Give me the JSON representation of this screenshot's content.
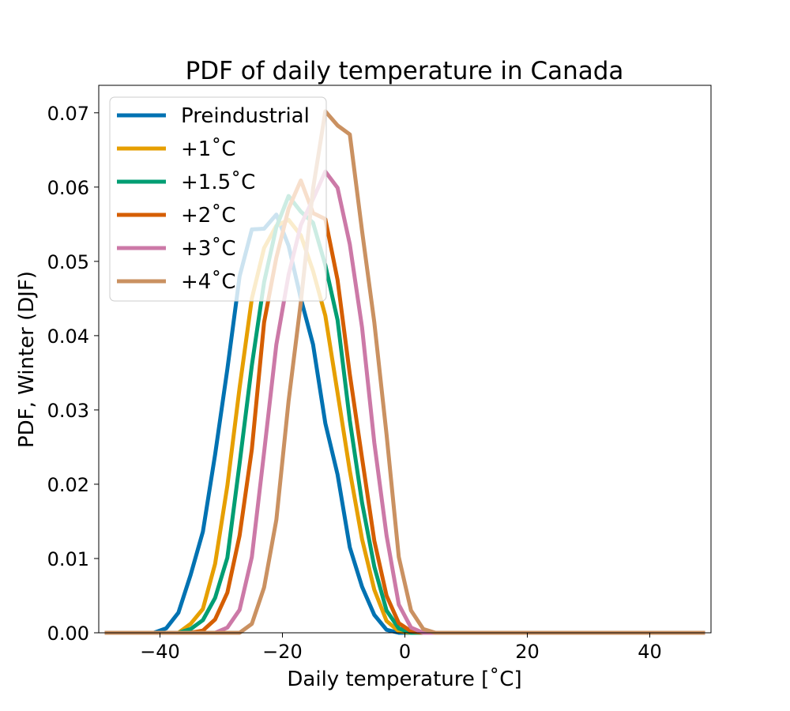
{
  "chart_data": {
    "type": "line",
    "title": "PDF of daily temperature in Canada",
    "xlabel": "Daily temperature [˚C]",
    "ylabel": "PDF, Winter (DJF)",
    "xlim": [
      -50,
      50
    ],
    "ylim": [
      0,
      0.0737
    ],
    "xticks": [
      -40,
      -20,
      0,
      20,
      40
    ],
    "xtick_labels": [
      "−40",
      "−20",
      "0",
      "20",
      "40"
    ],
    "yticks": [
      0.0,
      0.01,
      0.02,
      0.03,
      0.04,
      0.05,
      0.06,
      0.07
    ],
    "ytick_labels": [
      "0.00",
      "0.01",
      "0.02",
      "0.03",
      "0.04",
      "0.05",
      "0.06",
      "0.07"
    ],
    "grid": false,
    "legend_position": "upper-left",
    "legend_alpha": 0.8,
    "series": [
      {
        "name": "Preindustrial",
        "color": "#0072b2",
        "points": [
          [
            -49,
            0
          ],
          [
            -41,
            0
          ],
          [
            -39,
            0.0006
          ],
          [
            -37,
            0.0027
          ],
          [
            -35,
            0.0078
          ],
          [
            -33,
            0.0136
          ],
          [
            -31,
            0.024
          ],
          [
            -29,
            0.0355
          ],
          [
            -27,
            0.048
          ],
          [
            -25,
            0.0543
          ],
          [
            -23,
            0.0544
          ],
          [
            -21,
            0.0563
          ],
          [
            -19,
            0.0521
          ],
          [
            -17,
            0.045
          ],
          [
            -15,
            0.0388
          ],
          [
            -13,
            0.0282
          ],
          [
            -11,
            0.0213
          ],
          [
            -9,
            0.0115
          ],
          [
            -7,
            0.0062
          ],
          [
            -5,
            0.0024
          ],
          [
            -3,
            0.0004
          ],
          [
            -1,
            0
          ],
          [
            49,
            0
          ]
        ]
      },
      {
        "name": "+1˚C",
        "color": "#e69f00",
        "points": [
          [
            -49,
            0
          ],
          [
            -37,
            0
          ],
          [
            -35,
            0.0012
          ],
          [
            -33,
            0.0032
          ],
          [
            -31,
            0.0093
          ],
          [
            -29,
            0.0198
          ],
          [
            -27,
            0.033
          ],
          [
            -25,
            0.045
          ],
          [
            -23,
            0.0518
          ],
          [
            -21,
            0.0548
          ],
          [
            -19,
            0.0556
          ],
          [
            -17,
            0.0535
          ],
          [
            -15,
            0.0487
          ],
          [
            -13,
            0.0427
          ],
          [
            -11,
            0.0323
          ],
          [
            -9,
            0.0218
          ],
          [
            -7,
            0.0126
          ],
          [
            -5,
            0.0058
          ],
          [
            -3,
            0.0016
          ],
          [
            -1,
            0.0002
          ],
          [
            1,
            0
          ],
          [
            49,
            0
          ]
        ]
      },
      {
        "name": "+1.5˚C",
        "color": "#009e73",
        "points": [
          [
            -49,
            0
          ],
          [
            -37,
            0
          ],
          [
            -35,
            0.0005
          ],
          [
            -33,
            0.0017
          ],
          [
            -31,
            0.0047
          ],
          [
            -29,
            0.0101
          ],
          [
            -27,
            0.0228
          ],
          [
            -25,
            0.036
          ],
          [
            -23,
            0.0472
          ],
          [
            -21,
            0.0546
          ],
          [
            -19,
            0.0588
          ],
          [
            -17,
            0.0567
          ],
          [
            -15,
            0.0552
          ],
          [
            -13,
            0.0495
          ],
          [
            -11,
            0.0421
          ],
          [
            -9,
            0.0286
          ],
          [
            -7,
            0.0175
          ],
          [
            -5,
            0.0089
          ],
          [
            -3,
            0.003
          ],
          [
            -1,
            0.0006
          ],
          [
            1,
            0
          ],
          [
            49,
            0
          ]
        ]
      },
      {
        "name": "+2˚C",
        "color": "#d55e00",
        "points": [
          [
            -49,
            0
          ],
          [
            -35,
            0
          ],
          [
            -33,
            0.0003
          ],
          [
            -31,
            0.0018
          ],
          [
            -29,
            0.0054
          ],
          [
            -27,
            0.0131
          ],
          [
            -25,
            0.0247
          ],
          [
            -23,
            0.0418
          ],
          [
            -21,
            0.0505
          ],
          [
            -19,
            0.0571
          ],
          [
            -17,
            0.0609
          ],
          [
            -15,
            0.0565
          ],
          [
            -13,
            0.0557
          ],
          [
            -11,
            0.0475
          ],
          [
            -9,
            0.0348
          ],
          [
            -7,
            0.0235
          ],
          [
            -5,
            0.0124
          ],
          [
            -3,
            0.005
          ],
          [
            -1,
            0.0013
          ],
          [
            1,
            0.0002
          ],
          [
            3,
            0
          ],
          [
            49,
            0
          ]
        ]
      },
      {
        "name": "+3˚C",
        "color": "#cc79a7",
        "points": [
          [
            -49,
            0
          ],
          [
            -31,
            0
          ],
          [
            -29,
            0.0007
          ],
          [
            -27,
            0.0031
          ],
          [
            -25,
            0.0102
          ],
          [
            -23,
            0.0243
          ],
          [
            -21,
            0.0388
          ],
          [
            -19,
            0.0482
          ],
          [
            -17,
            0.0549
          ],
          [
            -15,
            0.0584
          ],
          [
            -13,
            0.0621
          ],
          [
            -11,
            0.0599
          ],
          [
            -9,
            0.0523
          ],
          [
            -7,
            0.0411
          ],
          [
            -5,
            0.0256
          ],
          [
            -3,
            0.0131
          ],
          [
            -1,
            0.0038
          ],
          [
            1,
            0.0007
          ],
          [
            3,
            0
          ],
          [
            49,
            0
          ]
        ]
      },
      {
        "name": "+4˚C",
        "color": "#ca9161",
        "points": [
          [
            -49,
            0
          ],
          [
            -27,
            0
          ],
          [
            -25,
            0.0012
          ],
          [
            -23,
            0.0061
          ],
          [
            -21,
            0.0152
          ],
          [
            -19,
            0.0312
          ],
          [
            -17,
            0.0445
          ],
          [
            -15,
            0.0598
          ],
          [
            -13,
            0.0702
          ],
          [
            -11,
            0.0683
          ],
          [
            -9,
            0.0671
          ],
          [
            -7,
            0.0541
          ],
          [
            -5,
            0.0418
          ],
          [
            -3,
            0.0267
          ],
          [
            -1,
            0.0102
          ],
          [
            1,
            0.003
          ],
          [
            3,
            0.0005
          ],
          [
            5,
            0
          ],
          [
            49,
            0
          ]
        ]
      }
    ]
  }
}
